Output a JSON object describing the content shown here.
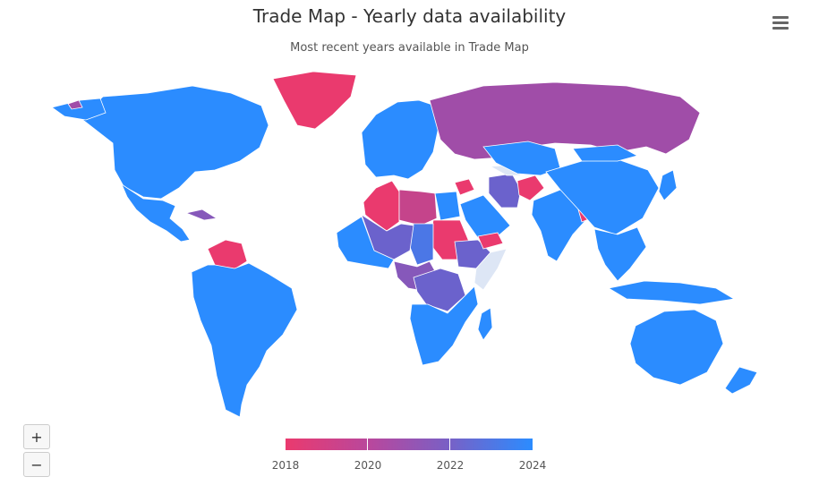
{
  "title": "Trade Map - Yearly data availability",
  "subtitle": "Most recent years available in Trade Map",
  "toolbar": {
    "menu_icon": "hamburger-menu-icon"
  },
  "zoom": {
    "in_label": "+",
    "out_label": "−"
  },
  "legend": {
    "labels": [
      "2018",
      "2020",
      "2022",
      "2024"
    ]
  },
  "colors": {
    "y2018": "#ea3a6e",
    "y2020": "#a04da8",
    "y2022": "#6b62cc",
    "y2024": "#2b8cff",
    "no_data": "#dde6f5",
    "border": "#ffffff"
  },
  "chart_data": {
    "type": "choropleth",
    "value_range": [
      2018,
      2024
    ],
    "regions": [
      {
        "name": "North America",
        "value": 2024
      },
      {
        "name": "Alaska",
        "value": 2024
      },
      {
        "name": "Mexico and Central America",
        "value": 2024
      },
      {
        "name": "Cuba",
        "value": 2021
      },
      {
        "name": "Greenland",
        "value": 2018
      },
      {
        "name": "Venezuela",
        "value": 2018
      },
      {
        "name": "South America",
        "value": 2024
      },
      {
        "name": "Europe",
        "value": 2024
      },
      {
        "name": "Russia",
        "value": 2020
      },
      {
        "name": "Algeria",
        "value": 2018
      },
      {
        "name": "Libya",
        "value": 2019
      },
      {
        "name": "Egypt",
        "value": 2024
      },
      {
        "name": "Sudan",
        "value": 2018
      },
      {
        "name": "Chad",
        "value": 2023
      },
      {
        "name": "Sahel",
        "value": 2022
      },
      {
        "name": "West Africa",
        "value": 2024
      },
      {
        "name": "Central Africa",
        "value": 2021
      },
      {
        "name": "DR Congo",
        "value": 2022
      },
      {
        "name": "Ethiopia",
        "value": 2022
      },
      {
        "name": "Somalia",
        "value": null
      },
      {
        "name": "East and Southern Africa",
        "value": 2024
      },
      {
        "name": "Madagascar",
        "value": 2024
      },
      {
        "name": "Saudi Arabia",
        "value": 2024
      },
      {
        "name": "Yemen",
        "value": 2018
      },
      {
        "name": "Syria",
        "value": 2018
      },
      {
        "name": "Iran",
        "value": 2022
      },
      {
        "name": "Afghanistan",
        "value": 2018
      },
      {
        "name": "Turkmenistan",
        "value": null
      },
      {
        "name": "Central Asia",
        "value": 2024
      },
      {
        "name": "India",
        "value": 2024
      },
      {
        "name": "Bangladesh",
        "value": 2018
      },
      {
        "name": "China",
        "value": 2024
      },
      {
        "name": "Mongolia",
        "value": 2024
      },
      {
        "name": "Japan",
        "value": 2024
      },
      {
        "name": "Southeast Asia",
        "value": 2024
      },
      {
        "name": "Indonesia",
        "value": 2024
      },
      {
        "name": "Australia",
        "value": 2024
      },
      {
        "name": "New Zealand",
        "value": 2024
      },
      {
        "name": "Svalbard",
        "value": 2020
      }
    ]
  }
}
